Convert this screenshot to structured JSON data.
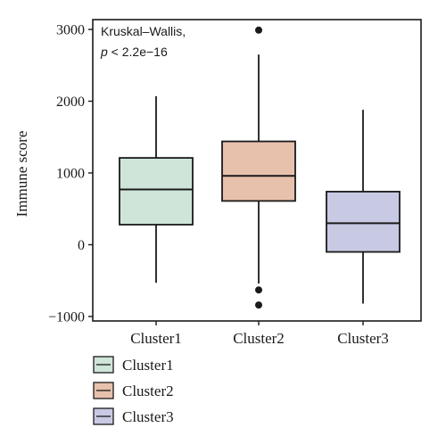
{
  "chart_data": {
    "type": "box",
    "ylabel": "Immune score",
    "xlabel": "",
    "ylim": [
      -1000,
      3000
    ],
    "yticks": [
      -1000,
      0,
      1000,
      2000,
      3000
    ],
    "ytick_labels": [
      "−1000",
      "0",
      "1000",
      "2000",
      "3000"
    ],
    "categories": [
      "Cluster1",
      "Cluster2",
      "Cluster3"
    ],
    "annotation": {
      "line1": "Kruskal–Wallis,",
      "line2_italic": "p",
      "line2_rest": " < 2.2e−16"
    },
    "series": [
      {
        "name": "Cluster1",
        "color": "#cfe5d9",
        "whisker_low": -530,
        "q1": 280,
        "median": 770,
        "q3": 1210,
        "whisker_high": 2070,
        "outliers": []
      },
      {
        "name": "Cluster2",
        "color": "#e8c1ad",
        "whisker_low": -540,
        "q1": 610,
        "median": 960,
        "q3": 1440,
        "whisker_high": 2650,
        "outliers": [
          2990,
          -630,
          -840
        ]
      },
      {
        "name": "Cluster3",
        "color": "#c8c9e3",
        "whisker_low": -820,
        "q1": -100,
        "median": 300,
        "q3": 740,
        "whisker_high": 1880,
        "outliers": []
      }
    ],
    "legend": {
      "position": "bottom-left",
      "items": [
        "Cluster1",
        "Cluster2",
        "Cluster3"
      ]
    },
    "grid": false
  }
}
